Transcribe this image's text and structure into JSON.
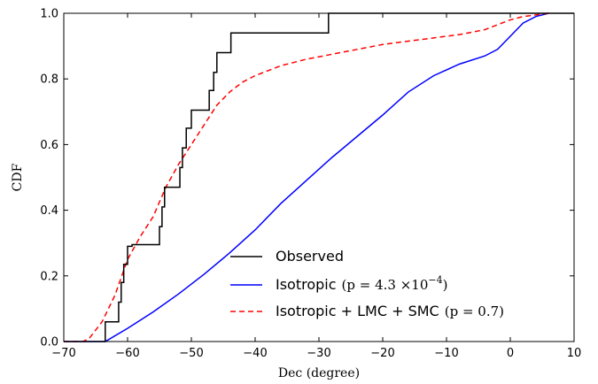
{
  "chart_data": {
    "type": "line",
    "title": "",
    "xlabel": "Dec (degree)",
    "ylabel": "CDF",
    "xlim": [
      -70,
      10
    ],
    "ylim": [
      0.0,
      1.0
    ],
    "xticks": [
      -70,
      -60,
      -50,
      -40,
      -30,
      -20,
      -10,
      0,
      10
    ],
    "yticks": [
      0.0,
      0.2,
      0.4,
      0.6,
      0.8,
      1.0
    ],
    "xtick_labels": [
      "−70",
      "−60",
      "−50",
      "−40",
      "−30",
      "−20",
      "−10",
      "0",
      "10"
    ],
    "ytick_labels": [
      "0.0",
      "0.2",
      "0.4",
      "0.6",
      "0.8",
      "1.0"
    ],
    "grid": false,
    "legend_position": "lower-right",
    "series": [
      {
        "name": "Observed",
        "legend_text": "Observed",
        "color": "#000000",
        "style": "step-solid",
        "x": [
          -70,
          -63.5,
          -63.5,
          -61.4,
          -61.4,
          -61.0,
          -61.0,
          -60.6,
          -60.6,
          -60.0,
          -60.0,
          -59.3,
          -59.3,
          -55.0,
          -55.0,
          -54.6,
          -54.6,
          -54.2,
          -54.2,
          -51.8,
          -51.8,
          -51.4,
          -51.4,
          -50.8,
          -50.8,
          -50.0,
          -50.0,
          -47.2,
          -47.2,
          -46.5,
          -46.5,
          -46.0,
          -46.0,
          -43.8,
          -43.8,
          -28.5,
          -28.5,
          -17.3,
          -17.3,
          10
        ],
        "y": [
          0.0,
          0.0,
          0.06,
          0.06,
          0.12,
          0.12,
          0.18,
          0.18,
          0.235,
          0.235,
          0.29,
          0.29,
          0.295,
          0.295,
          0.35,
          0.35,
          0.41,
          0.41,
          0.47,
          0.47,
          0.53,
          0.53,
          0.59,
          0.59,
          0.65,
          0.65,
          0.705,
          0.705,
          0.765,
          0.765,
          0.82,
          0.82,
          0.88,
          0.88,
          0.94,
          0.94,
          1.0,
          1.0,
          1.0,
          1.0
        ]
      },
      {
        "name": "Isotropic",
        "legend_text": "Isotropic",
        "legend_math_prefix": "(p = 4.3 ×10",
        "legend_math_sup": "−4",
        "legend_math_suffix": ")",
        "color": "#0000ff",
        "style": "solid",
        "x": [
          -70,
          -63.5,
          -60,
          -56,
          -52,
          -48,
          -44,
          -40,
          -36,
          -32,
          -28,
          -24,
          -20,
          -16,
          -12,
          -8,
          -4,
          -2,
          0,
          2,
          4,
          6
        ],
        "y": [
          0.0,
          0.0,
          0.04,
          0.09,
          0.145,
          0.205,
          0.27,
          0.34,
          0.42,
          0.49,
          0.56,
          0.625,
          0.69,
          0.76,
          0.81,
          0.845,
          0.87,
          0.89,
          0.93,
          0.97,
          0.99,
          1.0
        ]
      },
      {
        "name": "Isotropic + LMC + SMC",
        "legend_text": "Isotropic + LMC + SMC",
        "legend_math": "(p = 0.7)",
        "color": "#ff0000",
        "style": "dashed",
        "x": [
          -70,
          -67,
          -66,
          -64,
          -62,
          -60,
          -58,
          -56,
          -54,
          -52,
          -50,
          -48,
          -46,
          -44,
          -42,
          -40,
          -38,
          -36,
          -32,
          -28,
          -24,
          -20,
          -16,
          -12,
          -8,
          -4,
          -2,
          0,
          2,
          4,
          6
        ],
        "y": [
          0.0,
          0.0,
          0.01,
          0.06,
          0.14,
          0.25,
          0.32,
          0.38,
          0.47,
          0.54,
          0.6,
          0.66,
          0.72,
          0.76,
          0.79,
          0.81,
          0.825,
          0.84,
          0.86,
          0.875,
          0.89,
          0.905,
          0.915,
          0.925,
          0.935,
          0.95,
          0.965,
          0.98,
          0.99,
          0.995,
          1.0
        ]
      }
    ]
  }
}
